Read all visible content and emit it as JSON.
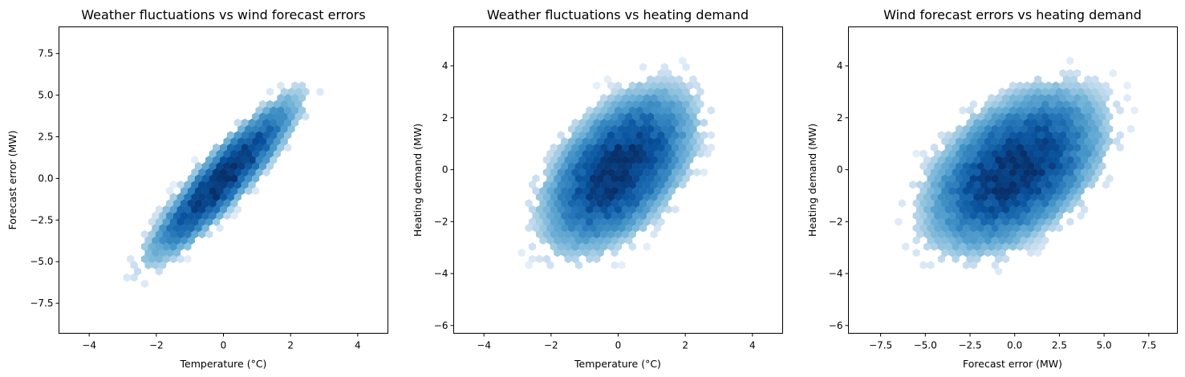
{
  "chart_data": [
    {
      "type": "hexbin",
      "title": "Weather fluctuations vs wind forecast errors",
      "xlabel": "Temperature (°C)",
      "ylabel": "Forecast error (MW)",
      "xlim": [
        -4.9,
        4.9
      ],
      "ylim": [
        -9.3,
        9.1
      ],
      "xticks": [
        -4,
        -2,
        0,
        2,
        4
      ],
      "xtick_labels": [
        "−4",
        "−2",
        "0",
        "2",
        "4"
      ],
      "yticks": [
        -7.5,
        -5.0,
        -2.5,
        0.0,
        2.5,
        5.0,
        7.5
      ],
      "ytick_labels": [
        "−7.5",
        "−5.0",
        "−2.5",
        "0.0",
        "2.5",
        "5.0",
        "7.5"
      ],
      "distribution": {
        "mean_x": 0.0,
        "mean_y": 0.0,
        "sd_x": 1.0,
        "sd_y": 2.2,
        "correlation": 0.9
      },
      "grid": false,
      "colormap": "Blues"
    },
    {
      "type": "hexbin",
      "title": "Weather fluctuations vs heating demand",
      "xlabel": "Temperature (°C)",
      "ylabel": "Heating demand (MW)",
      "xlim": [
        -4.9,
        4.9
      ],
      "ylim": [
        -6.3,
        5.5
      ],
      "xticks": [
        -4,
        -2,
        0,
        2,
        4
      ],
      "xtick_labels": [
        "−4",
        "−2",
        "0",
        "2",
        "4"
      ],
      "yticks": [
        -6,
        -4,
        -2,
        0,
        2,
        4
      ],
      "ytick_labels": [
        "−6",
        "−4",
        "−2",
        "0",
        "2",
        "4"
      ],
      "distribution": {
        "mean_x": 0.0,
        "mean_y": 0.0,
        "sd_x": 1.0,
        "sd_y": 1.4,
        "correlation": 0.5
      },
      "grid": false,
      "colormap": "Blues"
    },
    {
      "type": "hexbin",
      "title": "Wind forecast errors vs heating demand",
      "xlabel": "Forecast error (MW)",
      "ylabel": "Heating demand (MW)",
      "xlim": [
        -9.3,
        9.1
      ],
      "ylim": [
        -6.3,
        5.5
      ],
      "xticks": [
        -7.5,
        -5.0,
        -2.5,
        0.0,
        2.5,
        5.0,
        7.5
      ],
      "xtick_labels": [
        "−7.5",
        "−5.0",
        "−2.5",
        "0.0",
        "2.5",
        "5.0",
        "7.5"
      ],
      "yticks": [
        -6,
        -4,
        -2,
        0,
        2,
        4
      ],
      "ytick_labels": [
        "−6",
        "−4",
        "−2",
        "0",
        "2",
        "4"
      ],
      "distribution": {
        "mean_x": 0.0,
        "mean_y": 0.0,
        "sd_x": 2.2,
        "sd_y": 1.4,
        "correlation": 0.45
      },
      "grid": false,
      "colormap": "Blues"
    }
  ]
}
